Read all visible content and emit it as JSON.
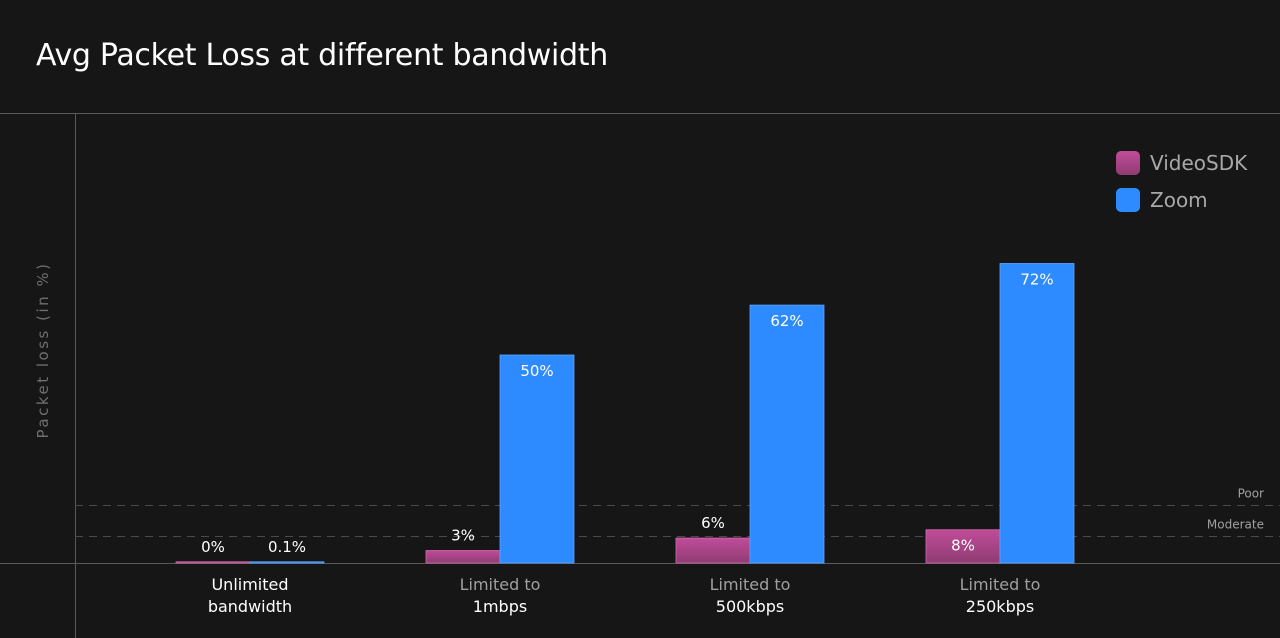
{
  "chart_data": {
    "type": "bar",
    "title": "Avg Packet Loss at different bandwidth",
    "ylabel": "Packet loss (in %)",
    "xlabel": "",
    "ylim": [
      0,
      100
    ],
    "grid": false,
    "legend_position": "top-right",
    "categories": [
      [
        "Unlimited",
        "bandwidth"
      ],
      [
        "Limited to",
        "1mbps"
      ],
      [
        "Limited to",
        "500kbps"
      ],
      [
        "Limited to",
        "250kbps"
      ]
    ],
    "series": [
      {
        "name": "VideoSDK",
        "color": "#b2458e",
        "values": [
          0,
          3,
          6,
          8
        ],
        "labels": [
          "0%",
          "3%",
          "6%",
          "8%"
        ]
      },
      {
        "name": "Zoom",
        "color": "#2e8bff",
        "values": [
          0.1,
          50,
          62,
          72
        ],
        "labels": [
          "0.1%",
          "50%",
          "62%",
          "72%"
        ]
      }
    ],
    "reference_lines": [
      {
        "label": "Poor",
        "value": 14
      },
      {
        "label": "Moderate",
        "value": 6.5
      }
    ]
  },
  "colors": {
    "background": "#161616",
    "axis": "#5a5a5a",
    "videosdk_top": "#c04c9a",
    "videosdk_bottom": "#8f3c72",
    "zoom": "#2e8bff",
    "category_first": "#ffffff",
    "category_line1": "#a0a0a0",
    "category_line2": "#ffffff"
  }
}
